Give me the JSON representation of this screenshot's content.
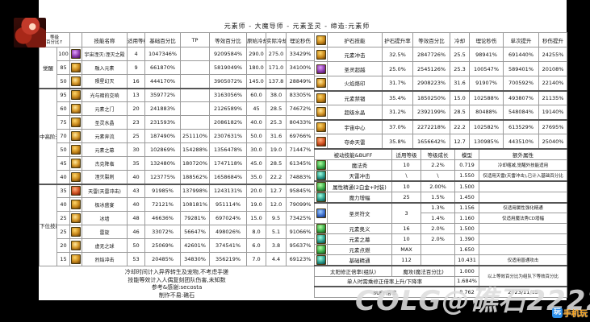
{
  "page": {
    "title": "元素师 - 大魔导师 - 元素圣灵 - 缔造:元素师",
    "watermark": "COLG@礁石22222",
    "logo_badge": "玩",
    "logo_text": "手机玩"
  },
  "left_table": {
    "corner": [
      "等级",
      "百分比↑"
    ],
    "headers": [
      "技能名称",
      "适用等级",
      "基础百分比",
      "TP",
      "等效百分比",
      "原始冷却",
      "实际冷却",
      "理论秒伤"
    ],
    "groups": [
      {
        "label": "觉醒",
        "span": 3
      },
      {
        "label": "中高阶无色",
        "span": 7
      },
      {
        "label": "下位技能",
        "span": 6
      }
    ],
    "rows": [
      {
        "lvl": "100",
        "icon": "purple",
        "name": "宇宙湮灭:湮灭之殿",
        "use": "4",
        "base": "1047346%",
        "tp": "",
        "eq": "9209584%",
        "cd": "290.0",
        "cd2": "275.0",
        "dps": "33429%"
      },
      {
        "lvl": "85",
        "icon": "gold",
        "name": "融入元素",
        "use": "9",
        "base": "661870%",
        "tp": "",
        "eq": "5819049%",
        "cd": "180.0",
        "cd2": "171.0",
        "dps": "34100%"
      },
      {
        "lvl": "50",
        "icon": "amber",
        "name": "陨星幻灭",
        "use": "16",
        "base": "444170%",
        "tp": "",
        "eq": "3905072%",
        "cd": "145.0",
        "cd2": "137.8",
        "dps": "28849%"
      },
      {
        "lvl": "95",
        "icon": "gold",
        "name": "光与暗的交响",
        "use": "13",
        "base": "359772%",
        "tp": "",
        "eq": "3163056%",
        "cd": "60.0",
        "cd2": "38.0",
        "dps": "83305%"
      },
      {
        "lvl": "60",
        "icon": "amber",
        "name": "元素之门",
        "use": "20",
        "base": "241883%",
        "tp": "",
        "eq": "2126589%",
        "cd": "45",
        "cd2": "28.5",
        "dps": "74672%"
      },
      {
        "lvl": "75",
        "icon": "gold",
        "name": "圣灵水晶",
        "use": "23",
        "base": "231593%",
        "tp": "",
        "eq": "2086182%",
        "cd": "40.0",
        "cd2": "25.3",
        "dps": "80433%"
      },
      {
        "lvl": "70",
        "icon": "amber",
        "name": "元素奔流",
        "use": "25",
        "base": "187490%",
        "tp": "251110%",
        "eq": "2307631%",
        "cd": "50.0",
        "cd2": "31.6",
        "dps": "69766%"
      },
      {
        "lvl": "50",
        "icon": "gold",
        "name": "元素之幕",
        "use": "30",
        "base": "102869%",
        "tp": "154288%",
        "eq": "1356478%",
        "cd": "30.0",
        "cd2": "19.0",
        "dps": "71447%"
      },
      {
        "lvl": "45",
        "icon": "amber",
        "name": "杰克降临",
        "use": "35",
        "base": "132480%",
        "tp": "180720%",
        "eq": "1747118%",
        "cd": "45.0",
        "cd2": "28.5",
        "dps": "61345%"
      },
      {
        "lvl": "40",
        "icon": "gold",
        "name": "湮灭裂刺",
        "use": "40",
        "base": "123775%",
        "tp": "188562%",
        "eq": "1658684%",
        "cd": "35.0",
        "cd2": "22.2",
        "dps": "74883%"
      },
      {
        "lvl": "35",
        "icon": "red",
        "name": "天雷(天雷冲击)",
        "use": "43",
        "base": "91985%",
        "tp": "137998%",
        "eq": "1243131%",
        "cd": "20.0",
        "cd2": "12.7",
        "dps": "95845%"
      },
      {
        "lvl": "40",
        "icon": "gold",
        "name": "极冰盛宴",
        "use": "40",
        "base": "72121%",
        "tp": "108181%",
        "eq": "951114%",
        "cd": "19.0",
        "cd2": "12.0",
        "dps": "79099%"
      },
      {
        "lvl": "25",
        "icon": "amber",
        "name": "冰墙",
        "use": "48",
        "base": "46636%",
        "tp": "79281%",
        "eq": "697024%",
        "cd": "15.0",
        "cd2": "9.5",
        "dps": "73425%"
      },
      {
        "lvl": "25",
        "icon": "gold",
        "name": "雷旋",
        "use": "46",
        "base": "33072%",
        "tp": "56647%",
        "eq": "498026%",
        "cd": "8.0",
        "cd2": "5.1",
        "dps": "91066%"
      },
      {
        "lvl": "20",
        "icon": "amber",
        "name": "虚无之球",
        "use": "50",
        "base": "25069%",
        "tp": "42601%",
        "eq": "374541%",
        "cd": "6.0",
        "cd2": "3.8",
        "dps": "95637%"
      },
      {
        "lvl": "15",
        "icon": "gold",
        "name": "烈焰冲击",
        "use": "53",
        "base": "20485%",
        "tp": "34830%",
        "eq": "356219%",
        "cd": "7.0",
        "cd2": "4.4",
        "dps": "69123%"
      }
    ]
  },
  "rune_table": {
    "headers": [
      "护石技能",
      "护石提升率",
      "等效百分比",
      "冷却",
      "理论秒伤",
      "单次提升",
      "秒伤提升"
    ],
    "rows": [
      {
        "icon": "gold",
        "name": "元素冲击",
        "rate": "32.5%",
        "eq": "2847726%",
        "cd": "25.5",
        "dps": "98941%",
        "single": "691440%",
        "up": "24255%",
        "sec": false
      },
      {
        "icon": "purple",
        "name": "圣灵超越",
        "rate": "25.0%",
        "eq": "2545126%",
        "cd": "25.3",
        "dps": "100547%",
        "single": "589401%",
        "up": "20108%",
        "sec": false
      },
      {
        "icon": "amber",
        "name": "火焰烙印",
        "rate": "31.7%",
        "eq": "2908223%",
        "cd": "31.6",
        "dps": "91907%",
        "single": "700592%",
        "up": "22140%",
        "sec": false
      },
      {
        "icon": "gold",
        "name": "元素禁锢",
        "rate": "35.4%",
        "eq": "1850250%",
        "cd": "15.0",
        "dps": "102588%",
        "single": "493807%",
        "up": "21135%",
        "sec": true
      },
      {
        "icon": "amber",
        "name": "超级水晶",
        "rate": "31.2%",
        "eq": "2392199%",
        "cd": "28.5",
        "dps": "80488%",
        "single": "548084%",
        "up": "19140%",
        "sec": false
      },
      {
        "icon": "gold",
        "name": "宇宙中心",
        "rate": "37.0%",
        "eq": "2272218%",
        "cd": "22.2",
        "dps": "102582%",
        "single": "613529%",
        "up": "27695%",
        "sec": true
      },
      {
        "icon": "red",
        "name": "夺命天雷",
        "rate": "35.8%",
        "eq": "1656642%",
        "cd": "12.7",
        "dps": "130985%",
        "single": "443510%",
        "up": "25040%",
        "sec": false
      }
    ]
  },
  "passive_table": {
    "headers": [
      "被动技能&BUFF",
      "适用等级",
      "等级成长",
      "模型",
      "额外属性"
    ],
    "rows": [
      {
        "icon": "green",
        "name": "魔法秀",
        "lvl": "10",
        "growth": "2.2%",
        "model": "0.719",
        "extra": "冷却缩减,觉醒外技能适用",
        "sec": false
      },
      {
        "icon": "teal",
        "name": "天雷冲击",
        "lvl": "\\",
        "growth": "\\",
        "model": "1.550",
        "extra": "仅适用天雷(天雷冲击),已计入基础百分比",
        "sec": false
      },
      {
        "icon": "green",
        "name": "属性精通(2白金+时装)",
        "lvl": "10",
        "growth": "2.00%",
        "model": "1.500",
        "extra": "",
        "sec": true
      },
      {
        "icon": "teal",
        "name": "魔力增幅",
        "lvl": "25",
        "growth": "1.5%",
        "model": "1.450",
        "extra": "",
        "sec": false
      },
      {
        "icon": "blue",
        "name": "圣灵符文",
        "lvl": "3",
        "growth": "1.3%",
        "model": "1.156",
        "extra": "仅适用属性强化精通",
        "sec": true,
        "span2": true
      },
      {
        "icon": "",
        "name": "",
        "lvl": "",
        "growth": "1.4%",
        "model": "1.160",
        "extra": "仅适用魔法秀CD增幅",
        "continued": true
      },
      {
        "icon": "green",
        "name": "元素奥义",
        "lvl": "16",
        "growth": "2.0%",
        "model": "1.500",
        "extra": "",
        "sec": false
      },
      {
        "icon": "teal",
        "name": "元素之幕",
        "lvl": "10",
        "growth": "2.0%",
        "model": "1.390",
        "extra": "",
        "sec": false
      },
      {
        "icon": "green",
        "name": "元素点燃",
        "lvl": "MAX",
        "growth": "",
        "model": "1.650",
        "extra": "",
        "sec": false
      },
      {
        "icon": "teal",
        "name": "基础精通",
        "lvl": "112",
        "growth": "",
        "model": "10.431",
        "extra": "仅适用普通攻击",
        "sec": false
      }
    ],
    "team_row": {
      "label": "太阳修正倍率(组队)",
      "label2": "魔攻(魔法百分比)",
      "model": "1.000",
      "note": "以上等效百分比为组队下等效百分比"
    },
    "solo_row": {
      "label": "单人时需乘修正倍率上升/下降率",
      "model": "1.684%"
    },
    "buff_row": {
      "label": "BUFF倍率",
      "model": "8.762",
      "date": "2023/11/15"
    }
  },
  "notes": [
    "冷却时间计入异界转生及宠物,不考虑手搓",
    "技能等效计入人偶复刻团队伤害,未知数",
    "参考&感谢:secosta",
    "制作不易:礁石"
  ],
  "colors": {
    "background": "#000000",
    "panel": "#ffffff",
    "accent_gold": "#c8871a",
    "watermark_gray": "#dedede",
    "logo_blue": "#2e8fe8",
    "logo_orange": "#f5a11c"
  }
}
